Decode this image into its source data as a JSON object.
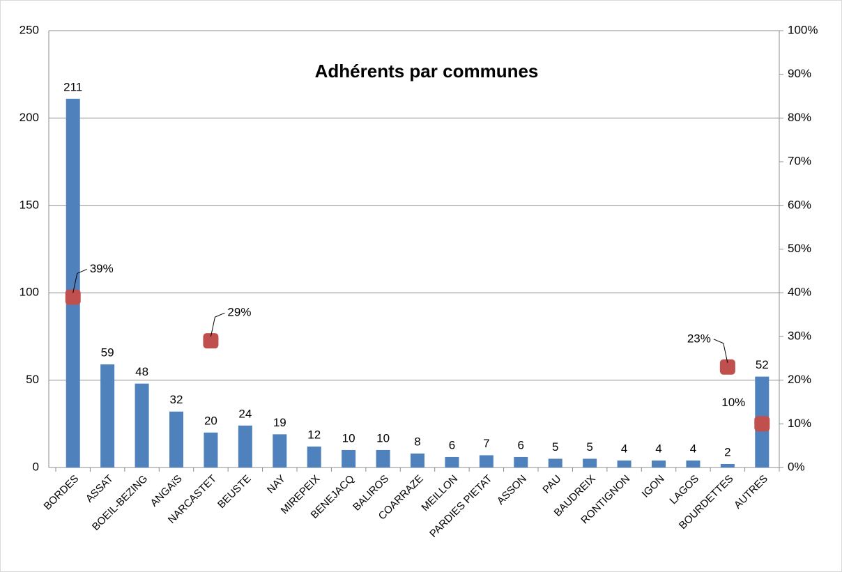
{
  "chart_data": {
    "type": "bar",
    "title": "Adhérents par communes",
    "categories": [
      "BORDES",
      "ASSAT",
      "BOEIL-BEZING",
      "ANGAïS",
      "NARCASTET",
      "BEUSTE",
      "NAY",
      "MIREPEIX",
      "BENEJACQ",
      "BALIROS",
      "COARRAZE",
      "MEILLON",
      "PARDIES PIETAT",
      "ASSON",
      "PAU",
      "BAUDREIX",
      "RONTIGNON",
      "IGON",
      "LAGOS",
      "BOURDETTES",
      "AUTRES"
    ],
    "series": [
      {
        "color": "#4f81bd",
        "values": [
          211,
          59,
          48,
          32,
          20,
          24,
          19,
          12,
          10,
          10,
          8,
          6,
          7,
          6,
          5,
          5,
          4,
          4,
          4,
          2,
          52
        ]
      },
      {
        "color": "#c0504d",
        "axis": "y2",
        "values": [
          39,
          null,
          null,
          null,
          29,
          null,
          null,
          null,
          null,
          null,
          null,
          null,
          null,
          null,
          null,
          null,
          null,
          null,
          null,
          23,
          10
        ],
        "value_labels": [
          "39%",
          null,
          null,
          null,
          "29%",
          null,
          null,
          null,
          null,
          null,
          null,
          null,
          null,
          null,
          null,
          null,
          null,
          null,
          null,
          "23%",
          "10%"
        ]
      }
    ],
    "ylim": [
      0,
      250
    ],
    "yticks": [
      0,
      50,
      100,
      150,
      200,
      250
    ],
    "y2lim": [
      0,
      100
    ],
    "y2ticks": [
      {
        "value": 0,
        "label": "0%"
      },
      {
        "value": 10,
        "label": "10%"
      },
      {
        "value": 20,
        "label": "20%"
      },
      {
        "value": 30,
        "label": "30%"
      },
      {
        "value": 40,
        "label": "40%"
      },
      {
        "value": 50,
        "label": "50%"
      },
      {
        "value": 60,
        "label": "60%"
      },
      {
        "value": 70,
        "label": "70%"
      },
      {
        "value": 80,
        "label": "80%"
      },
      {
        "value": 90,
        "label": "90%"
      },
      {
        "value": 100,
        "label": "100%"
      }
    ],
    "grid": true
  }
}
